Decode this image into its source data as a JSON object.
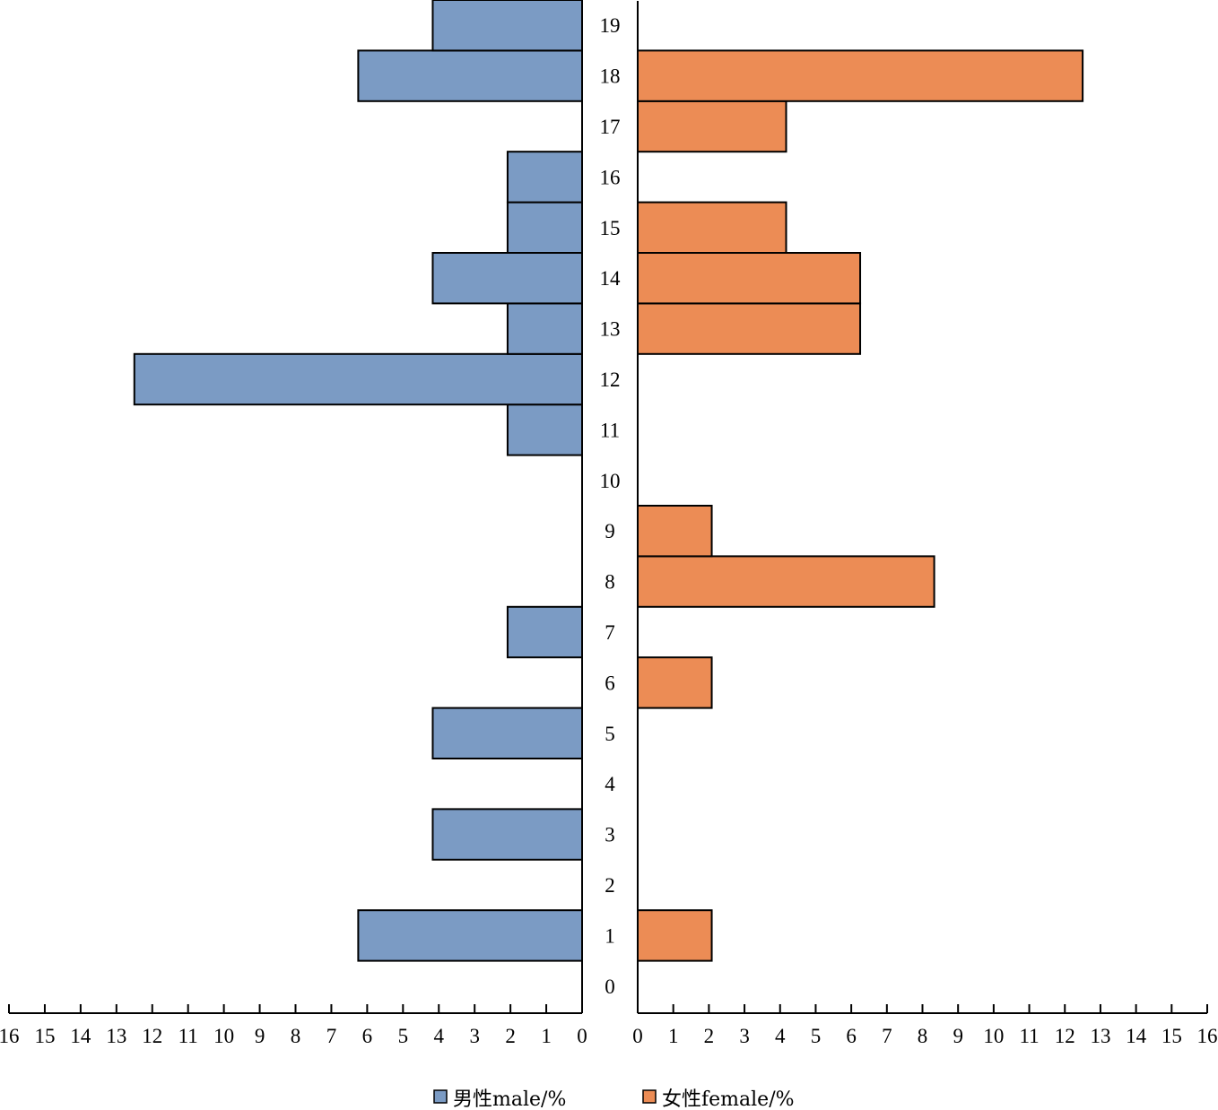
{
  "chart_data": {
    "type": "bar",
    "orientation": "horizontal",
    "layout": "butterfly",
    "categories": [
      "0",
      "1",
      "2",
      "3",
      "4",
      "5",
      "6",
      "7",
      "8",
      "9",
      "10",
      "11",
      "12",
      "13",
      "14",
      "15",
      "16",
      "17",
      "18",
      "19"
    ],
    "series": [
      {
        "name": "男性male/%",
        "color": "#7b9bc4",
        "values": [
          0,
          6.25,
          0,
          4.17,
          0,
          4.17,
          0,
          2.08,
          0,
          0,
          0,
          2.08,
          12.5,
          2.08,
          4.17,
          2.08,
          2.08,
          0,
          6.25,
          4.17
        ]
      },
      {
        "name": "女性female/%",
        "color": "#ec8c55",
        "values": [
          0,
          2.08,
          0,
          0,
          0,
          0,
          2.08,
          0,
          8.33,
          2.08,
          0,
          0,
          0,
          6.25,
          6.25,
          4.17,
          0,
          4.17,
          12.5,
          0
        ]
      }
    ],
    "xlim": [
      0,
      16
    ],
    "xticks_left": [
      "16",
      "15",
      "14",
      "13",
      "12",
      "11",
      "10",
      "9",
      "8",
      "7",
      "6",
      "5",
      "4",
      "3",
      "2",
      "1",
      "0"
    ],
    "xticks_right": [
      "0",
      "1",
      "2",
      "3",
      "4",
      "5",
      "6",
      "7",
      "8",
      "9",
      "10",
      "11",
      "12",
      "13",
      "14",
      "15",
      "16"
    ],
    "grid": false,
    "legend_position": "bottom-center"
  }
}
